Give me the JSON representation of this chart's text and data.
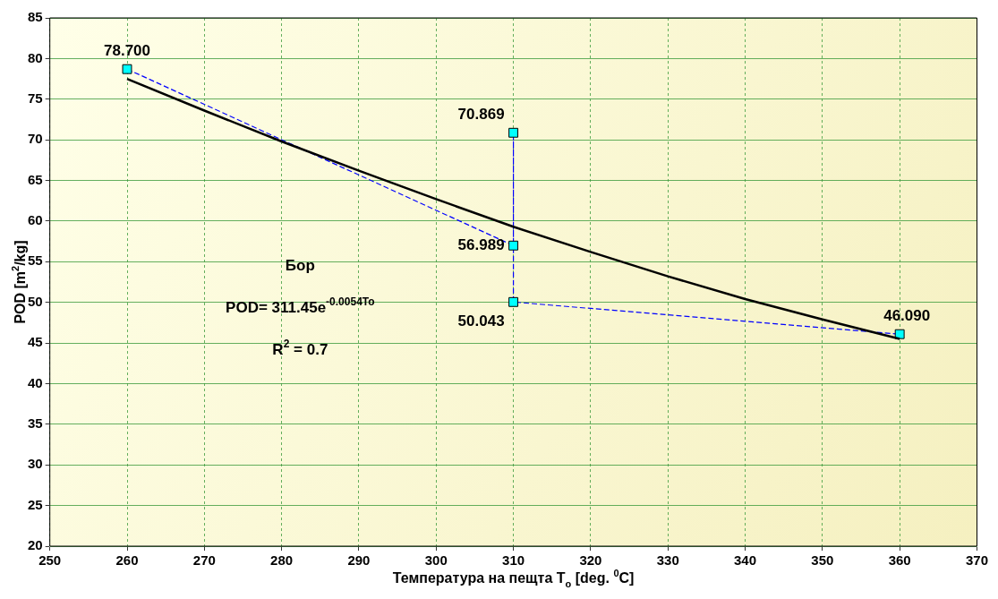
{
  "chart_data": {
    "type": "scatter",
    "xlabel": "Температура на пещта T$_{o}$ [deg. $^{0}$C]",
    "ylabel": "POD [m$^{2}$/kg]",
    "xlim": [
      250,
      370
    ],
    "xticks": [
      250,
      260,
      270,
      280,
      290,
      300,
      310,
      320,
      330,
      340,
      350,
      360,
      370
    ],
    "ylim": [
      20,
      85
    ],
    "yticks": [
      20,
      25,
      30,
      35,
      40,
      45,
      50,
      55,
      60,
      65,
      70,
      75,
      80,
      85
    ],
    "grid": true,
    "legend": false,
    "series": [
      {
        "type": "line",
        "color": "#000000",
        "marker": "none",
        "line_style": "solid",
        "x": [
          260,
          270,
          280,
          290,
          300,
          310,
          320,
          330,
          340,
          350,
          360
        ],
        "values": [
          77.5,
          73.6,
          69.8,
          66.2,
          62.7,
          59.3,
          56.2,
          53.2,
          50.4,
          47.9,
          45.5
        ]
      },
      {
        "type": "line",
        "color": "#0000ff",
        "marker": "square",
        "line_style": "dashed",
        "x": [
          260,
          310,
          310,
          310,
          360
        ],
        "values": [
          78.7,
          56.989,
          70.869,
          50.043,
          46.09
        ],
        "value_labels": [
          "78.700",
          "56.989",
          "70.869",
          "50.043",
          "46.090"
        ]
      }
    ],
    "annotations": [
      "Бор",
      "POD= 311.45e$^{-0.0054To}$",
      "R$^{2}$ = 0.7"
    ]
  }
}
